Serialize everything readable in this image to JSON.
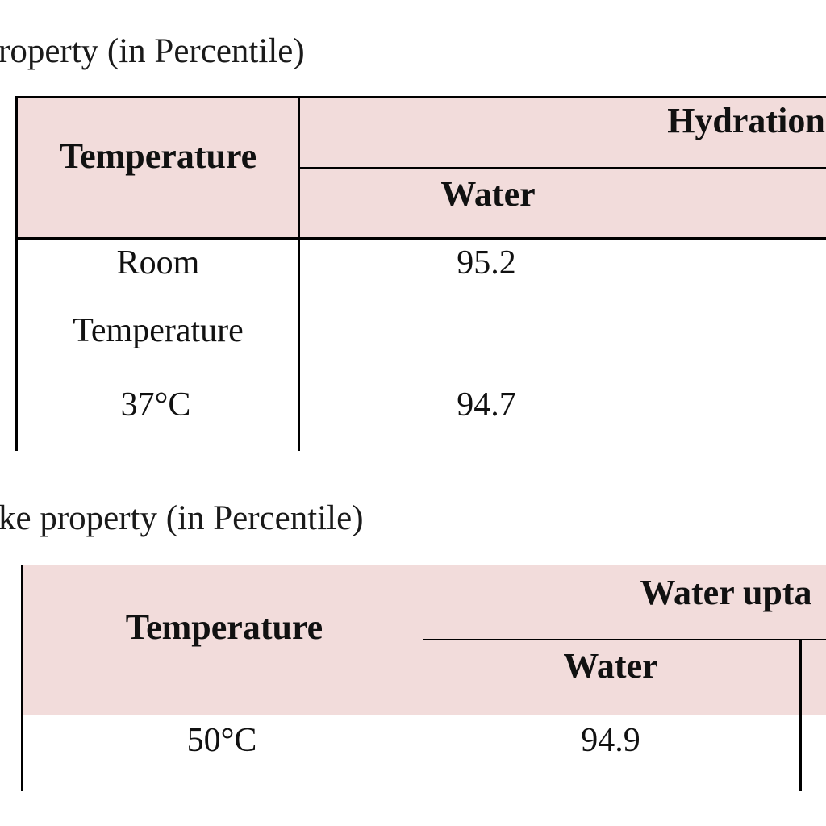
{
  "table1": {
    "caption": "roperty (in Percentile)",
    "header": {
      "row_label": "Temperature",
      "group": "Hydration",
      "sub": "Water"
    },
    "rows": [
      {
        "temp_line1": "Room",
        "temp_line2": "Temperature",
        "value": "95.2"
      },
      {
        "temp": "37°C",
        "value": "94.7"
      }
    ]
  },
  "table2": {
    "caption": "ke property (in Percentile)",
    "header": {
      "row_label": "Temperature",
      "group": "Water upta",
      "sub": "Water"
    },
    "rows": [
      {
        "temp": "50°C",
        "value": "94.9"
      }
    ]
  },
  "colors": {
    "header_fill": "#f2dcdb",
    "border": "#000000",
    "text": "#111111"
  }
}
